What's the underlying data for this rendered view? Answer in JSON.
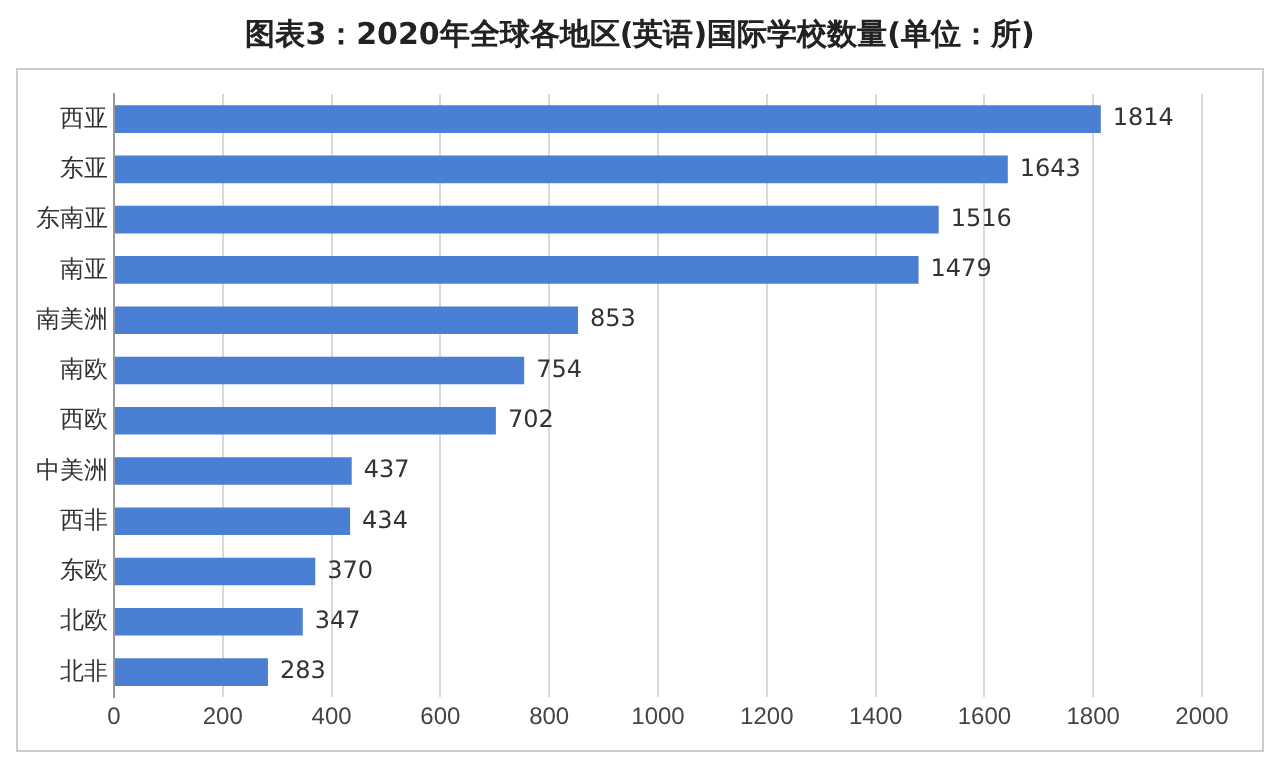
{
  "chart_data": {
    "type": "bar",
    "orientation": "horizontal",
    "title": "图表3：2020年全球各地区(英语)国际学校数量(单位：所)",
    "categories": [
      "西亚",
      "东亚",
      "东南亚",
      "南亚",
      "南美洲",
      "南欧",
      "西欧",
      "中美洲",
      "西非",
      "东欧",
      "北欧",
      "北非"
    ],
    "values": [
      1814,
      1643,
      1516,
      1479,
      853,
      754,
      702,
      437,
      434,
      370,
      347,
      283
    ],
    "color": "#4a7fd4",
    "xlim": [
      0,
      2000
    ],
    "xticks": [
      0,
      200,
      400,
      600,
      800,
      1000,
      1200,
      1400,
      1600,
      1800,
      2000
    ],
    "grid": "x",
    "data_labels": true,
    "legend": false
  }
}
